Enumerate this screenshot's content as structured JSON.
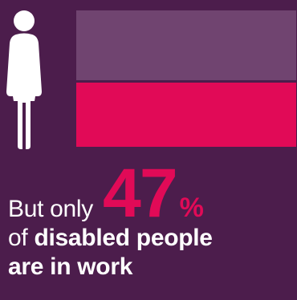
{
  "colors": {
    "background": "#4c1d4c",
    "bar_top": "#704470",
    "bar_bottom": "#e10a57",
    "highlight": "#e10a57",
    "text": "#ffffff"
  },
  "icon": "person-figure-icon",
  "bar": {
    "filled_fraction": 0.47
  },
  "text": {
    "lead": "But only",
    "number": "47",
    "percent_sign": "%",
    "line2_prefix": "of",
    "line2_bold": "disabled people",
    "line3_bold": "are in work"
  }
}
